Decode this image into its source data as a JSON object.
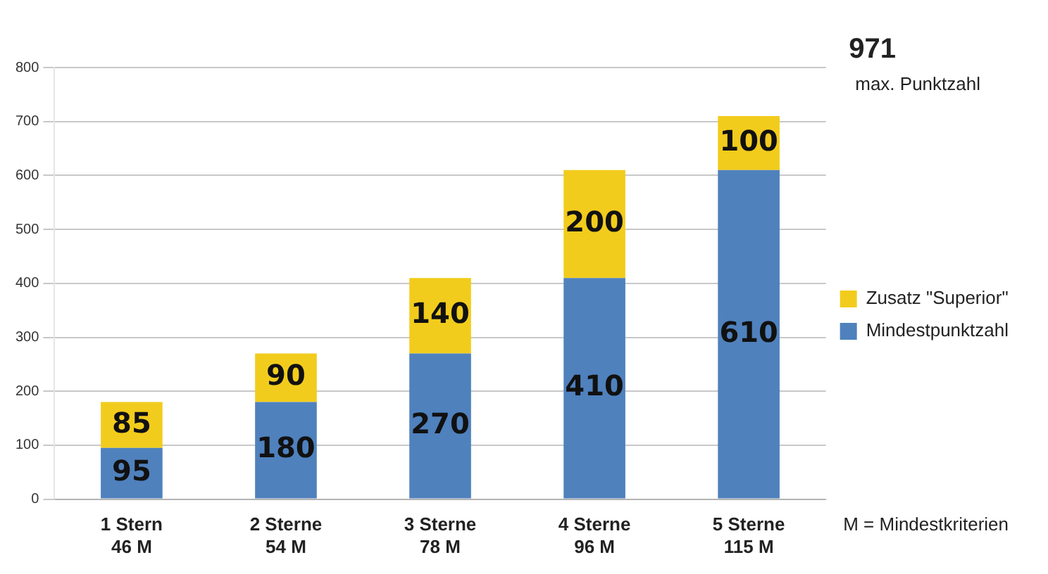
{
  "chart_data": {
    "type": "bar",
    "stacked": true,
    "categories": [
      "1 Stern\n46 M",
      "2 Sterne\n54 M",
      "3 Sterne\n78 M",
      "4 Sterne\n96 M",
      "5 Sterne\n115 M"
    ],
    "series": [
      {
        "name": "Mindestpunktzahl",
        "color": "#4f81bd",
        "values": [
          95,
          180,
          270,
          410,
          610
        ]
      },
      {
        "name": "Zusatz \"Superior\"",
        "color": "#f2cc1c",
        "values": [
          85,
          90,
          140,
          200,
          100
        ]
      }
    ],
    "ylim": [
      0,
      800
    ],
    "yticks": [
      0,
      100,
      200,
      300,
      400,
      500,
      600,
      700,
      800
    ],
    "grid": "y",
    "legend": "right",
    "data_labels": true,
    "annotations": [
      "971",
      "max. Punktzahl",
      "M = Mindestkriterien"
    ]
  }
}
